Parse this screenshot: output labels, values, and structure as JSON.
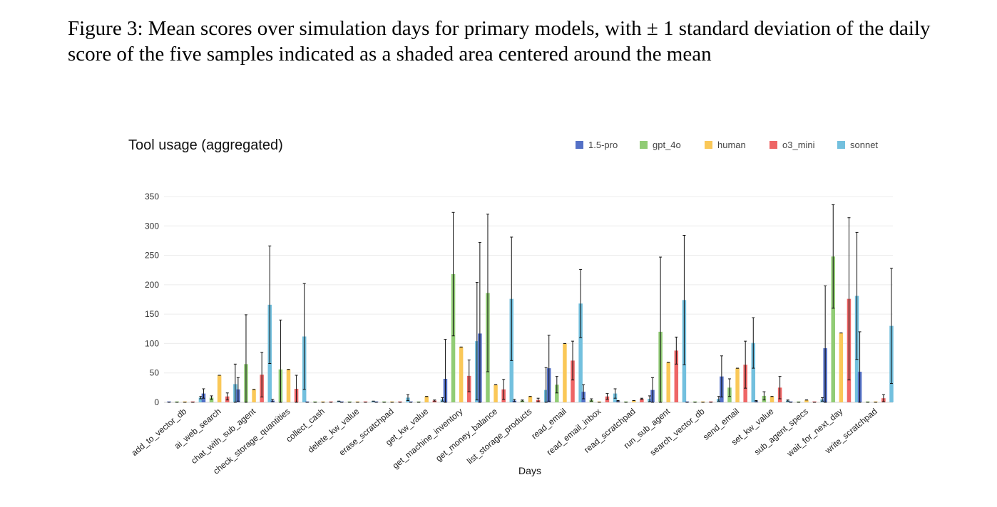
{
  "caption": "Figure 3: Mean scores over simulation days for primary models, with ± 1 standard deviation of the daily score of the five samples indicated as a shaded area centered around the mean",
  "chart_data": {
    "type": "bar",
    "title": "Tool usage (aggregated)",
    "xlabel": "Days",
    "ylabel": "",
    "ylim": [
      0,
      350
    ],
    "yticks": [
      0,
      50,
      100,
      150,
      200,
      250,
      300,
      350
    ],
    "grid": true,
    "legend_position": "top-right",
    "categories": [
      "add_to_vector_db",
      "ai_web_search",
      "chat_with_sub_agent",
      "check_storage_quantities",
      "collect_cash",
      "delete_kw_value",
      "erase_scratchpad",
      "get_kw_value",
      "get_machine_inventory",
      "get_money_balance",
      "list_storage_products",
      "read_email",
      "read_email_inbox",
      "read_scratchpad",
      "run_sub_agent",
      "search_vector_db",
      "send_email",
      "set_kw_value",
      "sub_agent_specs",
      "wait_for_next_day",
      "write_scratchpad"
    ],
    "series": [
      {
        "name": "1.5-pro",
        "color": "#5470c6",
        "values": [
          0,
          15,
          22,
          3,
          0,
          0,
          0,
          0,
          40,
          117,
          3,
          58,
          18,
          2,
          21,
          0,
          44,
          2,
          0,
          92,
          52
        ],
        "errors": [
          0,
          8,
          20,
          2,
          0,
          0,
          0,
          0,
          67,
          155,
          2,
          56,
          12,
          1,
          21,
          0,
          35,
          1,
          0,
          106,
          68
        ]
      },
      {
        "name": "gpt_4o",
        "color": "#91cc75",
        "values": [
          0,
          8,
          65,
          56,
          0,
          0,
          0,
          0,
          218,
          186,
          3,
          30,
          4,
          0,
          120,
          0,
          25,
          11,
          0,
          248,
          0
        ],
        "errors": [
          0,
          3,
          84,
          84,
          0,
          0,
          0,
          0,
          105,
          134,
          1,
          14,
          2,
          0,
          127,
          0,
          15,
          7,
          0,
          88,
          0
        ]
      },
      {
        "name": "human",
        "color": "#fac858",
        "values": [
          0,
          46,
          22,
          56,
          0,
          0,
          0,
          10,
          94,
          30,
          10,
          100,
          0,
          3,
          68,
          0,
          58,
          10,
          4,
          118,
          0
        ],
        "errors": [
          0,
          0,
          0,
          0,
          0,
          0,
          0,
          0,
          0,
          0,
          0,
          0,
          0,
          0,
          0,
          0,
          0,
          0,
          0,
          0,
          0
        ]
      },
      {
        "name": "o3_mini",
        "color": "#ee6666",
        "values": [
          0,
          10,
          47,
          23,
          0,
          0,
          0,
          3,
          45,
          22,
          4,
          71,
          10,
          6,
          88,
          0,
          64,
          25,
          0,
          176,
          7
        ],
        "errors": [
          0,
          6,
          38,
          23,
          0,
          0,
          0,
          1,
          27,
          17,
          3,
          33,
          5,
          1,
          23,
          0,
          40,
          19,
          0,
          138,
          6
        ]
      },
      {
        "name": "sonnet",
        "color": "#73c0de",
        "values": [
          8,
          31,
          166,
          112,
          2,
          2,
          8,
          5,
          104,
          176,
          21,
          168,
          15,
          6,
          174,
          6,
          101,
          3,
          5,
          181,
          130
        ],
        "errors": [
          2,
          34,
          100,
          90,
          0,
          0,
          5,
          3,
          100,
          105,
          38,
          58,
          8,
          5,
          110,
          4,
          43,
          1,
          3,
          108,
          98
        ]
      }
    ]
  }
}
